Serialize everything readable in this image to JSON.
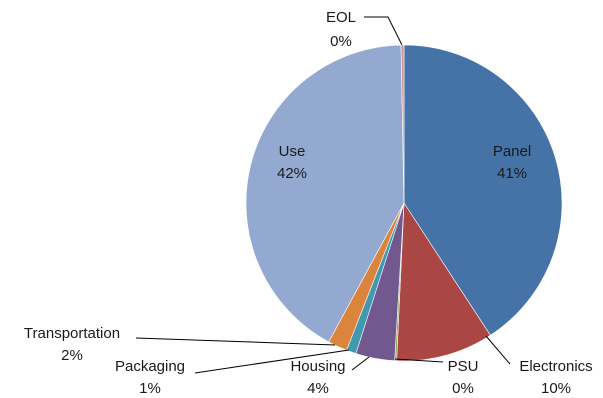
{
  "chart_data": {
    "type": "pie",
    "title": "",
    "slices": [
      {
        "name": "Panel",
        "value": 41,
        "label": "41%",
        "color": "#4572A7"
      },
      {
        "name": "Electronics",
        "value": 10,
        "label": "10%",
        "color": "#AA4643"
      },
      {
        "name": "PSU",
        "value": 0.2,
        "label": "0%",
        "color": "#89A54E"
      },
      {
        "name": "Housing",
        "value": 4,
        "label": "4%",
        "color": "#71588F"
      },
      {
        "name": "Packaging",
        "value": 1,
        "label": "1%",
        "color": "#4198AF"
      },
      {
        "name": "Transportation",
        "value": 2,
        "label": "2%",
        "color": "#DB843D"
      },
      {
        "name": "Use",
        "value": 42,
        "label": "42%",
        "color": "#93A9CF"
      },
      {
        "name": "EOL",
        "value": 0.3,
        "label": "0%",
        "color": "#D19392"
      }
    ],
    "start_angle_deg": 0,
    "direction": "clockwise",
    "legend": "none"
  }
}
